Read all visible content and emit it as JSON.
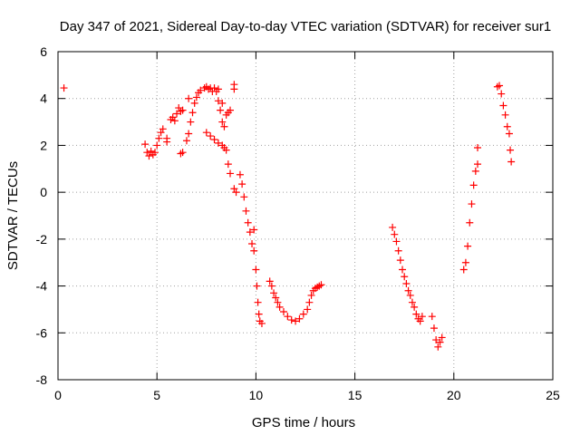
{
  "chart_data": {
    "type": "scatter",
    "title": "Day 347 of 2021, Sidereal Day-to-day VTEC variation (SDTVAR) for receiver sur1",
    "xlabel": "GPS time / hours",
    "ylabel": "SDTVAR / TECUs",
    "xlim": [
      0,
      25
    ],
    "ylim": [
      -8,
      6
    ],
    "x_ticks": [
      0,
      5,
      10,
      15,
      20,
      25
    ],
    "y_ticks": [
      -8,
      -6,
      -4,
      -2,
      0,
      2,
      4,
      6
    ],
    "grid": true,
    "marker": "plus",
    "color": "#ff0000",
    "series": [
      {
        "points": [
          [
            0.3,
            4.45
          ],
          [
            4.4,
            2.05
          ],
          [
            4.5,
            1.7
          ],
          [
            4.6,
            1.55
          ],
          [
            4.7,
            1.75
          ],
          [
            4.8,
            1.6
          ],
          [
            4.9,
            1.7
          ],
          [
            5.0,
            2.0
          ],
          [
            5.1,
            2.3
          ],
          [
            5.2,
            2.55
          ],
          [
            5.3,
            2.7
          ],
          [
            5.5,
            2.15
          ],
          [
            5.5,
            2.3
          ],
          [
            5.7,
            3.1
          ],
          [
            5.8,
            3.2
          ],
          [
            5.9,
            3.05
          ],
          [
            6.0,
            3.35
          ],
          [
            6.1,
            3.6
          ],
          [
            6.2,
            3.45
          ],
          [
            6.3,
            3.5
          ],
          [
            6.2,
            1.65
          ],
          [
            6.3,
            1.7
          ],
          [
            6.5,
            2.2
          ],
          [
            6.6,
            2.5
          ],
          [
            6.7,
            3.0
          ],
          [
            6.6,
            4.0
          ],
          [
            6.8,
            3.4
          ],
          [
            6.9,
            3.8
          ],
          [
            7.0,
            4.05
          ],
          [
            7.1,
            4.25
          ],
          [
            7.2,
            4.35
          ],
          [
            7.4,
            4.45
          ],
          [
            7.5,
            4.5
          ],
          [
            7.6,
            4.4
          ],
          [
            7.7,
            4.45
          ],
          [
            7.8,
            4.3
          ],
          [
            7.9,
            4.45
          ],
          [
            8.0,
            4.3
          ],
          [
            8.1,
            4.4
          ],
          [
            8.1,
            3.9
          ],
          [
            8.2,
            3.5
          ],
          [
            8.3,
            3.8
          ],
          [
            8.3,
            3.0
          ],
          [
            8.4,
            2.8
          ],
          [
            8.5,
            3.3
          ],
          [
            8.6,
            3.4
          ],
          [
            8.7,
            3.5
          ],
          [
            7.5,
            2.55
          ],
          [
            7.7,
            2.4
          ],
          [
            7.9,
            2.25
          ],
          [
            8.1,
            2.1
          ],
          [
            8.3,
            2.0
          ],
          [
            8.4,
            1.9
          ],
          [
            8.5,
            1.8
          ],
          [
            8.6,
            1.2
          ],
          [
            8.7,
            0.8
          ],
          [
            8.9,
            0.15
          ],
          [
            9.0,
            0.0
          ],
          [
            8.9,
            4.4
          ],
          [
            8.9,
            4.6
          ],
          [
            9.2,
            0.75
          ],
          [
            9.3,
            0.35
          ],
          [
            9.4,
            -0.2
          ],
          [
            9.5,
            -0.8
          ],
          [
            9.6,
            -1.3
          ],
          [
            9.7,
            -1.7
          ],
          [
            9.8,
            -2.2
          ],
          [
            9.9,
            -1.6
          ],
          [
            9.9,
            -2.5
          ],
          [
            10.0,
            -3.3
          ],
          [
            10.05,
            -4.0
          ],
          [
            10.1,
            -4.7
          ],
          [
            10.15,
            -5.2
          ],
          [
            10.2,
            -5.5
          ],
          [
            10.3,
            -5.6
          ],
          [
            10.7,
            -3.8
          ],
          [
            10.8,
            -4.0
          ],
          [
            10.9,
            -4.3
          ],
          [
            11.0,
            -4.5
          ],
          [
            11.1,
            -4.7
          ],
          [
            11.2,
            -4.9
          ],
          [
            11.4,
            -5.1
          ],
          [
            11.6,
            -5.3
          ],
          [
            11.8,
            -5.45
          ],
          [
            12.0,
            -5.5
          ],
          [
            12.2,
            -5.4
          ],
          [
            12.4,
            -5.2
          ],
          [
            12.6,
            -5.0
          ],
          [
            12.7,
            -4.7
          ],
          [
            12.8,
            -4.4
          ],
          [
            12.9,
            -4.2
          ],
          [
            13.0,
            -4.1
          ],
          [
            13.1,
            -4.05
          ],
          [
            13.2,
            -4.0
          ],
          [
            13.3,
            -3.95
          ],
          [
            16.9,
            -1.5
          ],
          [
            17.0,
            -1.8
          ],
          [
            17.1,
            -2.1
          ],
          [
            17.2,
            -2.5
          ],
          [
            17.3,
            -2.9
          ],
          [
            17.4,
            -3.3
          ],
          [
            17.5,
            -3.6
          ],
          [
            17.6,
            -3.9
          ],
          [
            17.7,
            -4.2
          ],
          [
            17.8,
            -4.4
          ],
          [
            17.9,
            -4.7
          ],
          [
            18.0,
            -4.9
          ],
          [
            18.1,
            -5.2
          ],
          [
            18.2,
            -5.4
          ],
          [
            18.3,
            -5.5
          ],
          [
            18.4,
            -5.3
          ],
          [
            18.9,
            -5.3
          ],
          [
            19.0,
            -5.8
          ],
          [
            19.1,
            -6.3
          ],
          [
            19.2,
            -6.6
          ],
          [
            19.3,
            -6.4
          ],
          [
            19.4,
            -6.2
          ],
          [
            20.5,
            -3.3
          ],
          [
            20.6,
            -3.0
          ],
          [
            20.7,
            -2.3
          ],
          [
            20.8,
            -1.3
          ],
          [
            20.9,
            -0.5
          ],
          [
            21.0,
            0.3
          ],
          [
            21.1,
            0.9
          ],
          [
            21.2,
            1.2
          ],
          [
            21.2,
            1.9
          ],
          [
            22.2,
            4.5
          ],
          [
            22.3,
            4.55
          ],
          [
            22.4,
            4.2
          ],
          [
            22.5,
            3.7
          ],
          [
            22.6,
            3.3
          ],
          [
            22.7,
            2.8
          ],
          [
            22.8,
            2.5
          ],
          [
            22.85,
            1.8
          ],
          [
            22.9,
            1.3
          ]
        ]
      }
    ]
  }
}
